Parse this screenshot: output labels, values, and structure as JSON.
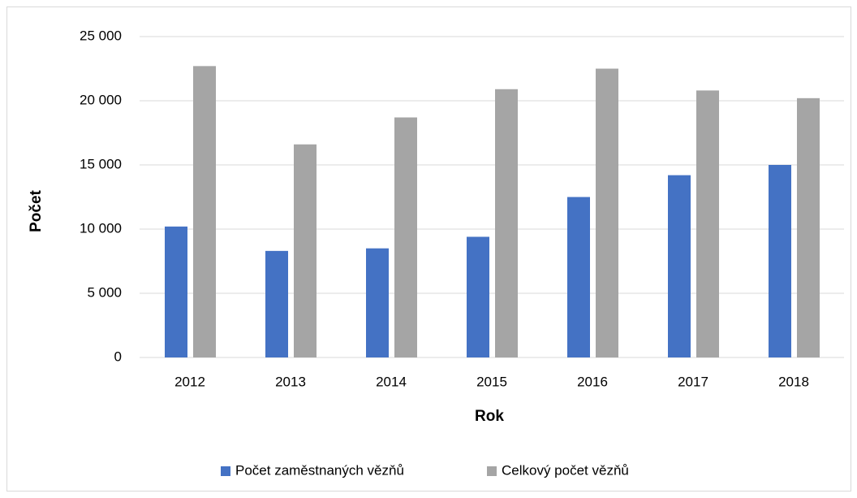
{
  "chart_data": {
    "type": "bar",
    "categories": [
      "2012",
      "2013",
      "2014",
      "2015",
      "2016",
      "2017",
      "2018"
    ],
    "series": [
      {
        "name": "Počet zaměstnaných vězňů",
        "color": "#4472c4",
        "values": [
          10200,
          8300,
          8500,
          9400,
          12500,
          14200,
          15000
        ]
      },
      {
        "name": "Celkový počet vězňů",
        "color": "#a5a5a5",
        "values": [
          22700,
          16600,
          18700,
          20900,
          22500,
          20800,
          20200
        ]
      }
    ],
    "x_label": "Rok",
    "y_label": "Počet",
    "ylim": [
      0,
      25000
    ],
    "yticks": [
      0,
      {
        "value": 5000,
        "label": "5 000"
      },
      {
        "value": 10000,
        "label": "10 000"
      },
      {
        "value": 15000,
        "label": "15 000"
      },
      {
        "value": 20000,
        "label": "20 000"
      },
      {
        "value": 25000,
        "label": "25 000"
      }
    ],
    "grid": true,
    "legend": "bottom"
  }
}
